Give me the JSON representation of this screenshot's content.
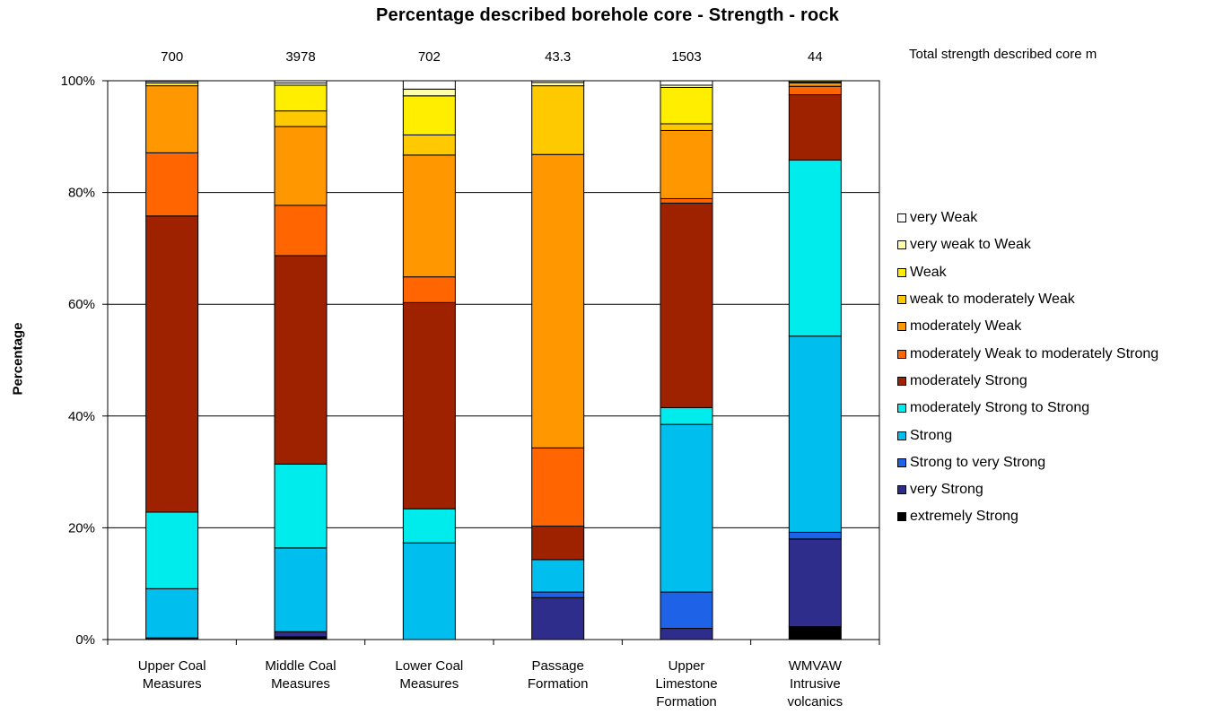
{
  "chart_data": {
    "type": "bar",
    "stacked": true,
    "normalized": true,
    "title": "Percentage described borehole core - Strength - rock",
    "ylabel": "Percentage",
    "xlabel": "",
    "ylim": [
      0,
      100
    ],
    "yticks": [
      "0%",
      "20%",
      "40%",
      "60%",
      "80%",
      "100%"
    ],
    "grid": true,
    "legend_position": "right",
    "totals_label": "Total strength described core m",
    "totals": [
      "700",
      "3978",
      "702",
      "43.3",
      "1503",
      "44"
    ],
    "categories": [
      [
        "Upper Coal",
        "Measures"
      ],
      [
        "Middle Coal",
        "Measures"
      ],
      [
        "Lower Coal",
        "Measures"
      ],
      [
        "Passage",
        "Formation"
      ],
      [
        "Upper",
        "Limestone",
        "Formation"
      ],
      [
        "WMVAW",
        "Intrusive",
        "volcanics"
      ]
    ],
    "series": [
      {
        "name": "extremely Strong",
        "color": "#000000",
        "values": [
          0.3,
          0.5,
          0,
          0,
          0,
          2.3
        ]
      },
      {
        "name": "very Strong",
        "color": "#2e2d8c",
        "values": [
          0,
          0.9,
          0,
          7.5,
          2.0,
          15.7
        ]
      },
      {
        "name": "Strong to very Strong",
        "color": "#1e62e8",
        "values": [
          0,
          0,
          0,
          1.0,
          6.5,
          1.2
        ]
      },
      {
        "name": "Strong",
        "color": "#00bfef",
        "values": [
          8.8,
          15.0,
          17.3,
          5.8,
          30.0,
          35.1
        ]
      },
      {
        "name": "moderately Strong to Strong",
        "color": "#00ecec",
        "values": [
          13.7,
          15.0,
          6.1,
          0,
          3.0,
          31.5
        ]
      },
      {
        "name": "moderately Strong",
        "color": "#9e2200",
        "values": [
          53.0,
          37.3,
          36.9,
          6.0,
          36.6,
          11.7
        ]
      },
      {
        "name": "moderately Weak to moderately Strong",
        "color": "#ff6500",
        "values": [
          11.3,
          9.0,
          4.6,
          14.0,
          0.8,
          1.5
        ]
      },
      {
        "name": "moderately Weak",
        "color": "#ff9800",
        "values": [
          12.0,
          14.1,
          21.8,
          52.5,
          12.2,
          0.6
        ]
      },
      {
        "name": "weak to moderately Weak",
        "color": "#ffc900",
        "values": [
          0,
          2.8,
          3.6,
          12.3,
          1.2,
          0.2
        ]
      },
      {
        "name": "Weak",
        "color": "#ffee00",
        "values": [
          0.5,
          4.6,
          7.0,
          0,
          6.5,
          0.2
        ]
      },
      {
        "name": "very weak to Weak",
        "color": "#ffffaa",
        "values": [
          0.3,
          0.4,
          1.2,
          0.6,
          0.4,
          0
        ]
      },
      {
        "name": "very Weak",
        "color": "#ffffff",
        "values": [
          0.1,
          0.4,
          1.5,
          0.3,
          0.8,
          0
        ]
      }
    ]
  }
}
